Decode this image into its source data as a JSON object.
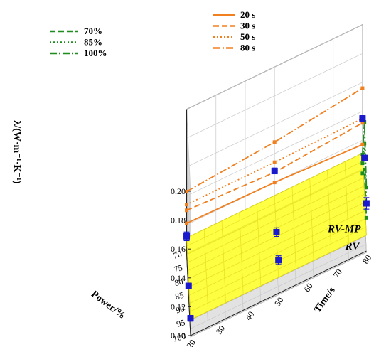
{
  "chart_data": {
    "type": "scatter",
    "title": "",
    "zlabel": "λ/(W·m⁻¹·K⁻¹)",
    "xlabel": "Power/%",
    "ylabel": "Time/s",
    "x_ticks": [
      "70",
      "75",
      "80",
      "85",
      "90",
      "95",
      "100"
    ],
    "y_ticks": [
      "20",
      "30",
      "40",
      "50",
      "60",
      "70",
      "80"
    ],
    "z_ticks": [
      "0.10",
      "0.12",
      "0.14",
      "0.16",
      "0.18",
      "0.20"
    ],
    "xlim": [
      70,
      100
    ],
    "ylim": [
      20,
      80
    ],
    "zlim": [
      0.1,
      0.2
    ],
    "legend_power": {
      "placement": "top-left",
      "color": "#1e8c1e",
      "entries": [
        {
          "label": "70%",
          "style": "dashed"
        },
        {
          "label": "85%",
          "style": "dotted"
        },
        {
          "label": "100%",
          "style": "dashdot"
        }
      ]
    },
    "legend_time": {
      "placement": "top-right",
      "color": "#f08020",
      "entries": [
        {
          "label": "20 s",
          "style": "solid"
        },
        {
          "label": "30 s",
          "style": "dashed"
        },
        {
          "label": "50 s",
          "style": "dotted"
        },
        {
          "label": "80 s",
          "style": "dashdot"
        }
      ]
    },
    "plane_labels": [
      {
        "text": "RV-MP",
        "z": 0.111,
        "color": "#ffff33"
      },
      {
        "text": "RV",
        "z": 0.099,
        "color": "#dddddd"
      }
    ],
    "power_series_at_time_80": {
      "color": "#1e8c1e",
      "x": [
        70,
        85,
        100
      ],
      "series": [
        {
          "name": "70%",
          "style": "dashed",
          "z": [
            0.097,
            0.128,
            0.123
          ]
        },
        {
          "name": "85%",
          "style": "dotted",
          "z": [
            0.104,
            0.146,
            0.134
          ]
        },
        {
          "name": "100%",
          "style": "dashdot",
          "z": [
            0.11,
            0.161,
            0.144
          ]
        }
      ]
    },
    "time_series_at_power_70": {
      "color": "#f08020",
      "y": [
        20,
        50,
        80
      ],
      "series": [
        {
          "name": "20 s",
          "style": "solid",
          "z": [
            0.121,
            0.12,
            0.117
          ]
        },
        {
          "name": "30 s",
          "style": "dashed",
          "z": [
            0.13,
            0.127,
            0.132
          ]
        },
        {
          "name": "50 s",
          "style": "dotted",
          "z": [
            0.134,
            0.134,
            0.135
          ]
        },
        {
          "name": "80 s",
          "style": "dashdot",
          "z": [
            0.143,
            0.148,
            0.156
          ]
        }
      ]
    },
    "measurements": {
      "color": "#1a1acc",
      "points": [
        {
          "x": 70,
          "y": 20,
          "z": 0.112,
          "err": 0.003
        },
        {
          "x": 70,
          "y": 50,
          "z": 0.128,
          "err": 0.002
        },
        {
          "x": 70,
          "y": 80,
          "z": 0.135,
          "err": 0.002
        },
        {
          "x": 85,
          "y": 20,
          "z": 0.106,
          "err": 0.002
        },
        {
          "x": 85,
          "y": 50,
          "z": 0.114,
          "err": 0.003
        },
        {
          "x": 85,
          "y": 80,
          "z": 0.136,
          "err": 0.002
        },
        {
          "x": 100,
          "y": 20,
          "z": 0.112,
          "err": 0.002
        },
        {
          "x": 100,
          "y": 50,
          "z": 0.123,
          "err": 0.003
        },
        {
          "x": 100,
          "y": 80,
          "z": 0.133,
          "err": 0.004
        }
      ]
    }
  }
}
